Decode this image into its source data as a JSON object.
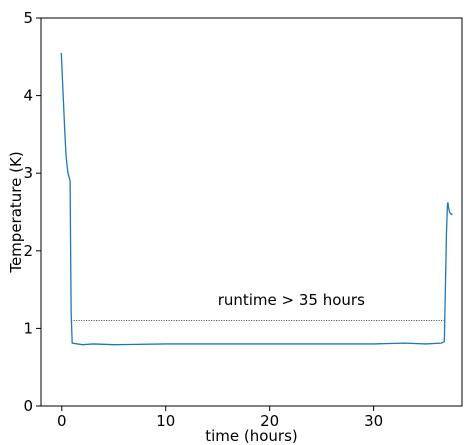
{
  "chart_data": {
    "type": "line",
    "title": "",
    "xlabel": "time (hours)",
    "ylabel": "Temperature (K)",
    "xlim": [
      -2,
      38.5
    ],
    "ylim": [
      0,
      5
    ],
    "xticks": [
      0,
      10,
      20,
      30
    ],
    "yticks": [
      0,
      1,
      2,
      3,
      4,
      5
    ],
    "grid": false,
    "series": [
      {
        "color": "#1f77b4",
        "x": [
          -0.05,
          0.0,
          0.1,
          0.2,
          0.3,
          0.4,
          0.5,
          0.6,
          0.7,
          0.8,
          0.85,
          0.9,
          1.0,
          1.5,
          2,
          3,
          5,
          10,
          15,
          20,
          25,
          30,
          33,
          35,
          36.5,
          36.8,
          36.9,
          37.0,
          37.1,
          37.15,
          37.2,
          37.3,
          37.4,
          37.5,
          37.6
        ],
        "y": [
          4.55,
          4.4,
          4.1,
          3.8,
          3.5,
          3.25,
          3.1,
          3.0,
          2.95,
          2.9,
          2.0,
          1.2,
          0.81,
          0.8,
          0.79,
          0.8,
          0.79,
          0.8,
          0.8,
          0.8,
          0.8,
          0.8,
          0.81,
          0.8,
          0.81,
          0.83,
          1.5,
          2.2,
          2.6,
          2.62,
          2.56,
          2.5,
          2.48,
          2.47,
          2.47
        ]
      }
    ],
    "reference_lines": [
      {
        "y": 1.1,
        "x_start": 0.9,
        "x_end": 36.9,
        "style": "dotted",
        "color": "#000000"
      }
    ],
    "annotations": [
      {
        "text": "runtime > 35 hours",
        "x": 15,
        "y": 1.3
      }
    ]
  }
}
